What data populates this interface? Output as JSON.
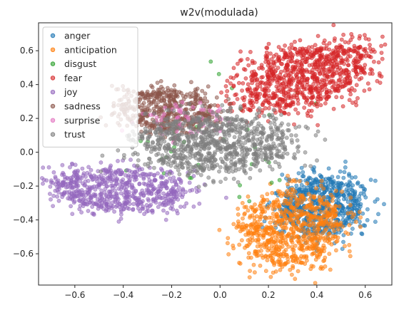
{
  "chart_data": {
    "type": "scatter",
    "title": "w2v(modulada)",
    "xlabel": "",
    "ylabel": "",
    "xlim": [
      -0.75,
      0.71
    ],
    "ylim": [
      -0.785,
      0.765
    ],
    "xticks": [
      -0.6,
      -0.4,
      -0.2,
      0.0,
      0.2,
      0.4,
      0.6
    ],
    "xtick_labels": [
      "−0.6",
      "−0.4",
      "−0.2",
      "0.0",
      "0.2",
      "0.4",
      "0.6"
    ],
    "yticks": [
      -0.6,
      -0.4,
      -0.2,
      0.0,
      0.2,
      0.4,
      0.6
    ],
    "ytick_labels": [
      "−0.6",
      "−0.4",
      "−0.2",
      "0.0",
      "0.2",
      "0.4",
      "0.6"
    ],
    "grid": false,
    "legend_position": "top-left",
    "marker_alpha": 0.55,
    "series": [
      {
        "name": "anger",
        "color": "#1f77b4",
        "cluster": {
          "cx": 0.42,
          "cy": -0.32,
          "rx": 0.16,
          "ry": 0.17,
          "rot": -30
        }
      },
      {
        "name": "anticipation",
        "color": "#ff7f0e",
        "cluster": {
          "cx": 0.3,
          "cy": -0.45,
          "rx": 0.19,
          "ry": 0.22,
          "rot": -25
        }
      },
      {
        "name": "disgust",
        "color": "#2ca02c",
        "cluster": {
          "cx": 0.0,
          "cy": 0.12,
          "rx": 0.3,
          "ry": 0.3,
          "rot": 0
        }
      },
      {
        "name": "fear",
        "color": "#d62728",
        "cluster": {
          "cx": 0.35,
          "cy": 0.45,
          "rx": 0.27,
          "ry": 0.16,
          "rot": 25
        }
      },
      {
        "name": "joy",
        "color": "#9467bd",
        "cluster": {
          "cx": -0.42,
          "cy": -0.22,
          "rx": 0.26,
          "ry": 0.12,
          "rot": -5
        }
      },
      {
        "name": "sadness",
        "color": "#8c564b",
        "cluster": {
          "cx": -0.22,
          "cy": 0.25,
          "rx": 0.19,
          "ry": 0.12,
          "rot": -5
        }
      },
      {
        "name": "surprise",
        "color": "#e377c2",
        "cluster": {
          "cx": -0.15,
          "cy": 0.18,
          "rx": 0.15,
          "ry": 0.1,
          "rot": 0
        }
      },
      {
        "name": "trust",
        "color": "#7f7f7f",
        "cluster": {
          "cx": -0.02,
          "cy": 0.05,
          "rx": 0.3,
          "ry": 0.16,
          "rot": 0
        }
      }
    ]
  }
}
